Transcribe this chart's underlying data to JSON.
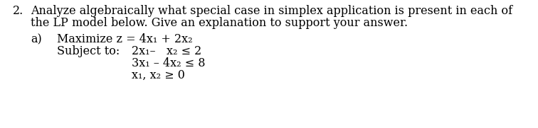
{
  "background_color": "#ffffff",
  "main_number": "2.",
  "main_text_line1": "Analyze algebraically what special case in simplex application is present in each of",
  "main_text_line2": "the LP model below. Give an explanation to support your answer.",
  "part_label": "a)",
  "objective_line": "Maximize z = 4x₁ + 2x₂",
  "subject_label": "Subject to:",
  "constraint1": "2x₁–   x₂ ≤ 2",
  "constraint2": "3x₁ – 4x₂ ≤ 8",
  "constraint3": "x₁, x₂ ≥ 0",
  "font_size": 11.5,
  "font_family": "DejaVu Serif"
}
